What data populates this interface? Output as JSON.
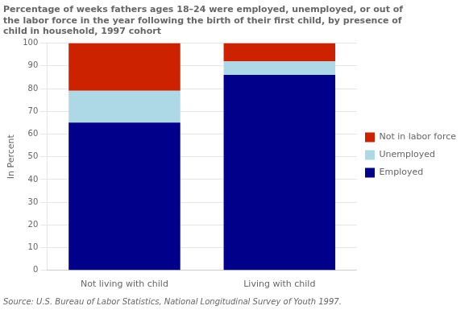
{
  "chart_data": {
    "type": "bar",
    "title": [
      "Percentage of weeks fathers ages 18–24 were employed, unemployed, or out of",
      "the labor force in the year following the birth of their first child, by presence of",
      "child in household, 1997 cohort"
    ],
    "source": "Source: U.S. Bureau of Labor Statistics, National Longitudinal Survey of Youth 1997.",
    "ylabel": "In Percent",
    "categories": [
      "Not living with child",
      "Living with child"
    ],
    "series": [
      {
        "name": "Employed",
        "color": "#00008B",
        "values": [
          65,
          86
        ]
      },
      {
        "name": "Unemployed",
        "color": "#ADD8E6",
        "values": [
          14,
          6
        ]
      },
      {
        "name": "Not in labor force",
        "color": "#CC2200",
        "values": [
          21,
          8
        ]
      }
    ],
    "stacked": true,
    "ylim": [
      0,
      100
    ],
    "yticks": [
      0,
      10,
      20,
      30,
      40,
      50,
      60,
      70,
      80,
      90,
      100
    ],
    "grid": true,
    "legend": "right"
  }
}
